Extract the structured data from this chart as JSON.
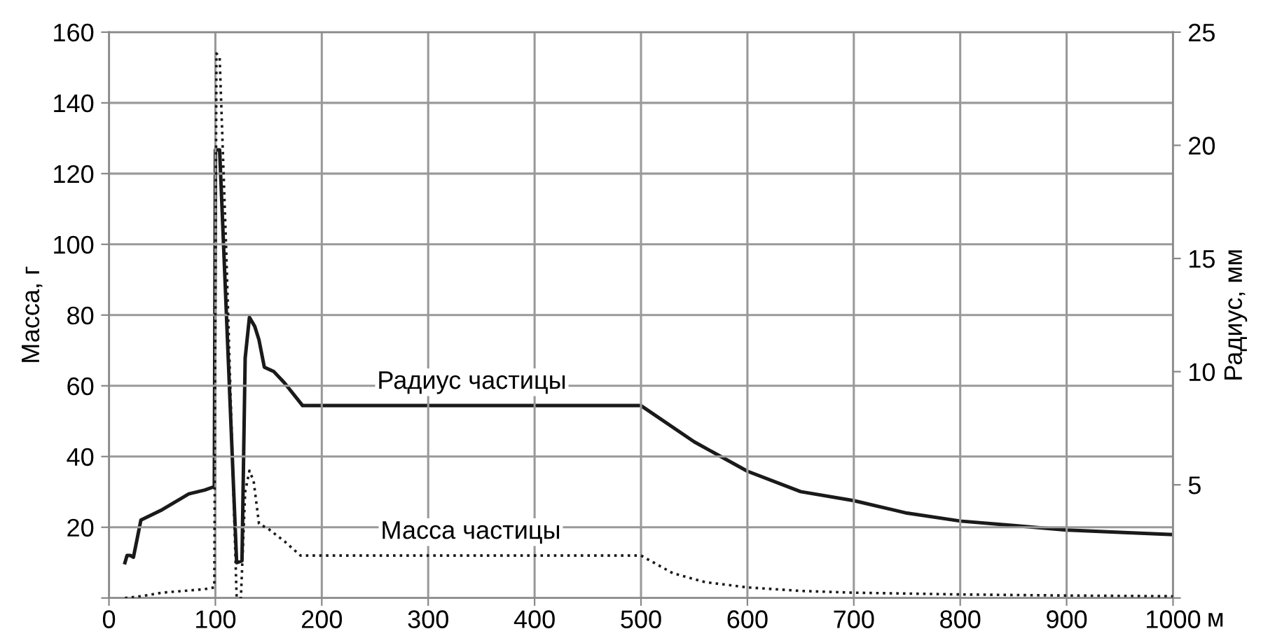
{
  "chart_data": {
    "type": "line",
    "ylabel": "Масса, г",
    "y2label": "Радиус, мм",
    "xlabel": "м",
    "xlim": [
      0,
      1000
    ],
    "xticks": [
      0,
      100,
      200,
      300,
      400,
      500,
      600,
      700,
      800,
      900,
      1000
    ],
    "ylim": [
      0,
      160
    ],
    "yticks": [
      {
        "value": 0,
        "label": null
      },
      20,
      40,
      60,
      80,
      100,
      120,
      140,
      160
    ],
    "y2lim": [
      0,
      25
    ],
    "y2ticks": [
      {
        "value": 0,
        "label": null
      },
      5,
      10,
      15,
      20,
      25
    ],
    "grid": true,
    "legend": false,
    "marker": "none",
    "series": [
      {
        "name": "Радиус частицы",
        "color": "#1a1a1a",
        "axis": "y2",
        "line_style": "solid",
        "x": [
          15,
          17,
          20,
          23,
          30,
          50,
          75,
          90,
          99,
          100,
          104,
          120,
          125,
          128,
          132,
          137,
          141,
          146,
          155,
          165,
          182,
          500,
          550,
          600,
          650,
          700,
          750,
          800,
          850,
          900,
          950,
          1000
        ],
        "values": [
          1.56,
          1.88,
          1.88,
          1.8,
          3.44,
          3.9,
          4.6,
          4.77,
          4.92,
          19.8,
          19.8,
          1.56,
          1.64,
          10.6,
          12.4,
          12.0,
          11.4,
          10.2,
          10.0,
          9.5,
          8.5,
          8.5,
          6.9,
          5.6,
          4.7,
          4.3,
          3.75,
          3.4,
          3.2,
          3.0,
          2.9,
          2.8
        ]
      },
      {
        "name": "Масса частицы",
        "color": "#1a1a1a",
        "line_style": "dotted",
        "x": [
          15,
          30,
          50,
          90,
          99,
          101,
          104,
          110,
          120,
          124,
          128,
          132,
          136,
          141,
          150,
          165,
          180,
          500,
          530,
          560,
          600,
          650,
          700,
          800,
          900,
          1000
        ],
        "values": [
          0,
          0.5,
          1.5,
          2.5,
          3,
          154,
          153,
          100,
          0,
          0,
          30,
          36,
          33,
          21,
          19.5,
          16,
          12,
          12,
          7,
          4.5,
          3,
          2,
          1.5,
          1,
          0.7,
          0.5
        ]
      }
    ]
  }
}
